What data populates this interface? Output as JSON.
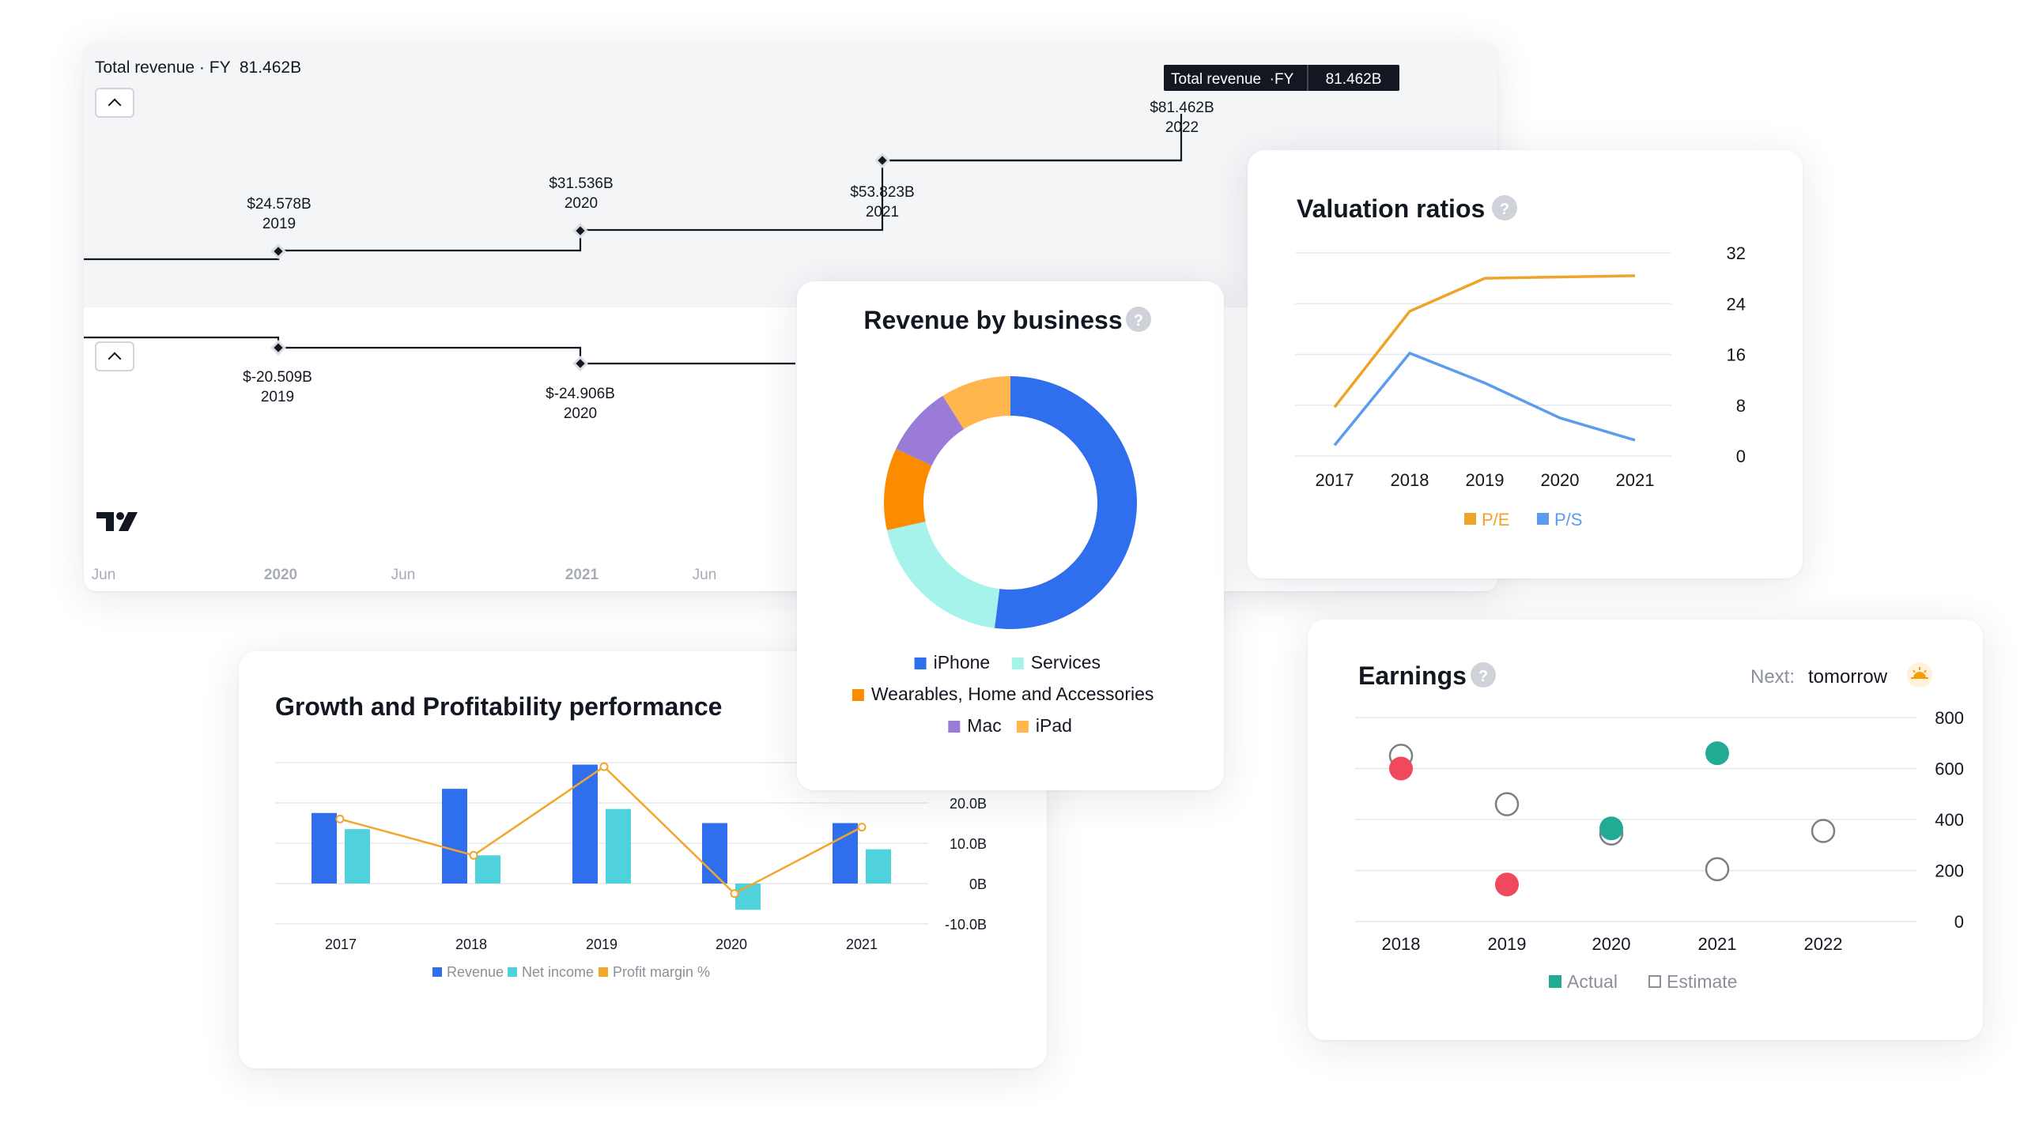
{
  "colors": {
    "blue": "#2F6FED",
    "teal": "#A5F3EB",
    "orange": "#FB8C00",
    "purple": "#9B7BD8",
    "amber": "#FFB74D",
    "pe": "#F0A32A",
    "ps": "#5B9CEF",
    "green": "#22AB94",
    "red": "#F0485C",
    "netincome": "#50D2DC",
    "margin": "#F2A62B",
    "text": "#131722",
    "grid": "#E6E8EC"
  },
  "revenue_card": {
    "header": "Total revenue · FY  81.462B",
    "tooltip": {
      "label": "Total revenue  ·FY",
      "value": "81.462B"
    },
    "series_top": [
      {
        "label": "$24.578B",
        "year": "2019"
      },
      {
        "label": "$31.536B",
        "year": "2020"
      },
      {
        "label": "$53.823B",
        "year": "2021"
      },
      {
        "label": "$81.462B",
        "year": "2022"
      }
    ],
    "series_bottom": [
      {
        "label": "$-20.509B",
        "year": "2019"
      },
      {
        "label": "$-24.906B",
        "year": "2020"
      }
    ],
    "time_axis": [
      "Jun",
      "2020",
      "Jun",
      "2021",
      "Jun"
    ],
    "logo_icon": "tradingview-logo"
  },
  "revenue_by_business": {
    "title": "Revenue by business",
    "help_icon": "help-icon",
    "help_glyph": "?",
    "chart_data": {
      "type": "pie",
      "title": "Revenue by business",
      "slices": [
        {
          "name": "iPhone",
          "value": 52,
          "color": "#2F6FED"
        },
        {
          "name": "Services",
          "value": 19.5,
          "color": "#A5F3EB"
        },
        {
          "name": "Wearables, Home and Accessories",
          "value": 10.5,
          "color": "#FB8C00"
        },
        {
          "name": "Mac",
          "value": 9,
          "color": "#9B7BD8"
        },
        {
          "name": "iPad",
          "value": 9,
          "color": "#FFB74D"
        }
      ],
      "legend_position": "bottom"
    }
  },
  "valuation_ratios": {
    "title": "Valuation ratios",
    "help_icon": "help-icon",
    "help_glyph": "?",
    "chart_data": {
      "type": "line",
      "title": "Valuation ratios",
      "x": [
        "2017",
        "2018",
        "2019",
        "2020",
        "2021"
      ],
      "series": [
        {
          "name": "P/E",
          "values": [
            7.7,
            22.8,
            28,
            28.2,
            28.4
          ],
          "color": "#F0A32A"
        },
        {
          "name": "P/S",
          "values": [
            1.7,
            16.2,
            11.5,
            6,
            2.5
          ],
          "color": "#5B9CEF"
        }
      ],
      "ylim": [
        0,
        32
      ],
      "yticks": [
        "32",
        "24",
        "16",
        "8",
        "0"
      ],
      "y_axis_position": "right",
      "grid": true,
      "legend_position": "bottom"
    }
  },
  "earnings": {
    "title": "Earnings",
    "help_icon": "help-icon",
    "help_glyph": "?",
    "next_label": "Next:",
    "next_value": "tomorrow",
    "next_icon": "sunrise-icon",
    "chart_data": {
      "type": "scatter",
      "title": "Earnings",
      "x": [
        "2018",
        "2019",
        "2020",
        "2021",
        "2022"
      ],
      "series": [
        {
          "name": "Actual",
          "values": [
            600,
            145,
            365,
            660,
            null
          ]
        },
        {
          "name": "Estimate",
          "values": [
            650,
            460,
            345,
            205,
            355
          ]
        }
      ],
      "actual_colors": [
        "#F0485C",
        "#F0485C",
        "#22AB94",
        "#22AB94",
        null
      ],
      "ylim": [
        0,
        800
      ],
      "yticks": [
        "800",
        "600",
        "400",
        "200",
        "0"
      ],
      "y_axis_position": "right",
      "grid": true,
      "legend_position": "bottom"
    }
  },
  "growth": {
    "title": "Growth and Profitability performance",
    "chart_data": {
      "type": "bar",
      "title": "Growth and Profitability performance",
      "categories": [
        "2017",
        "2018",
        "2019",
        "2020",
        "2021"
      ],
      "series": [
        {
          "name": "Revenue",
          "type": "bar",
          "values": [
            17.5,
            23.5,
            29.5,
            15,
            15
          ],
          "color": "#2F6FED"
        },
        {
          "name": "Net income",
          "type": "bar",
          "values": [
            13.5,
            7,
            18.5,
            -6.5,
            8.5
          ],
          "color": "#50D2DC"
        },
        {
          "name": "Profit margin %",
          "type": "line",
          "values": [
            16,
            7,
            29,
            -2.5,
            14
          ],
          "color": "#F2A62B"
        }
      ],
      "ylim": [
        -10,
        30
      ],
      "yticks": [
        "20.0B",
        "10.0B",
        "0B",
        "-10.0B"
      ],
      "y_axis_position": "right",
      "grid": true,
      "legend_position": "bottom"
    }
  }
}
